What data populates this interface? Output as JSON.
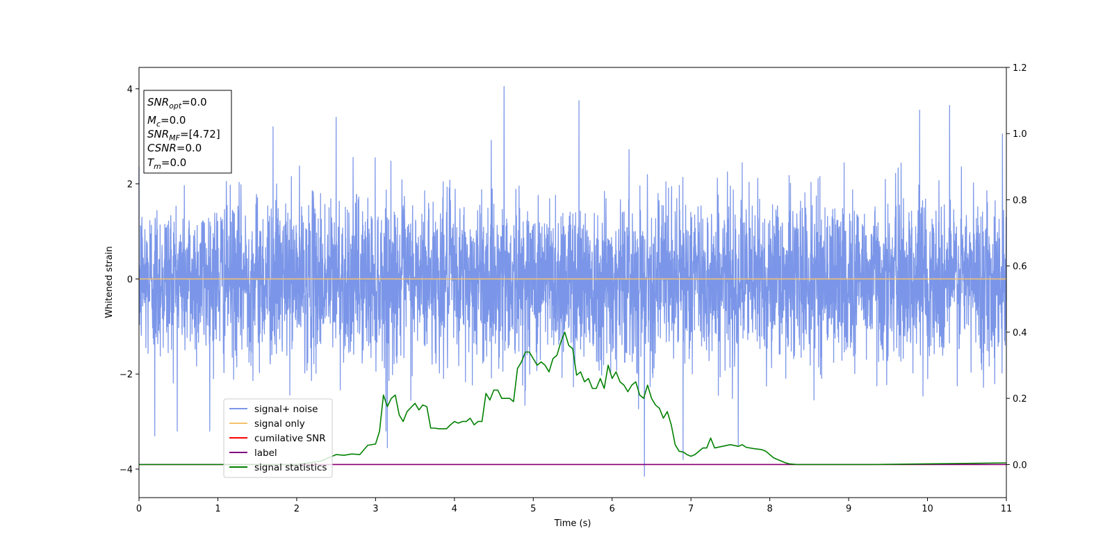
{
  "chart_data": {
    "type": "line",
    "xlabel": "Time (s)",
    "ylabel": "Whitened strain",
    "xlim": [
      0,
      11
    ],
    "ylim": [
      -4.6,
      4.45
    ],
    "ylim_right": [
      -0.1,
      1.2
    ],
    "x_ticks": [
      0,
      1,
      2,
      3,
      4,
      5,
      6,
      7,
      8,
      9,
      10,
      11
    ],
    "y_ticks": [
      -4,
      -2,
      0,
      2,
      4
    ],
    "y_ticks_right": [
      0.0,
      0.2,
      0.4,
      0.6,
      0.8,
      1.0,
      1.2
    ],
    "grid": false,
    "legend_position": "lower-left",
    "stats_box": [
      {
        "base": "SNR",
        "sub": "opt",
        "value": "=0.0"
      },
      {
        "base": "M",
        "sub": "c",
        "value": "=0.0"
      },
      {
        "base": "SNR",
        "sub": "MF",
        "value": "=[4.72]"
      },
      {
        "base": "CSNR",
        "sub": "",
        "value": "=0.0"
      },
      {
        "base": "T",
        "sub": "m",
        "value": "=0.0"
      }
    ],
    "series": [
      {
        "name": "signal+ noise",
        "color": "#7b96e8",
        "axis": "left",
        "kind": "noise",
        "std": 0.85,
        "spikes": [
          [
            4.63,
            4.05
          ],
          [
            5.58,
            3.75
          ],
          [
            6.41,
            -4.15
          ],
          [
            10.28,
            3.65
          ],
          [
            0.2,
            -3.3
          ],
          [
            6.9,
            -3.8
          ],
          [
            1.7,
            3.2
          ],
          [
            2.5,
            3.4
          ],
          [
            9.9,
            3.55
          ],
          [
            10.95,
            3.05
          ],
          [
            3.15,
            -3.55
          ],
          [
            7.6,
            -3.5
          ]
        ]
      },
      {
        "name": "signal only",
        "color": "#f5c26b",
        "axis": "left",
        "x": [
          0,
          11
        ],
        "y": [
          0,
          0
        ]
      },
      {
        "name": "cumilative SNR",
        "color": "#ff0000",
        "axis": "right",
        "x": [
          0,
          11
        ],
        "y": [
          0,
          0
        ]
      },
      {
        "name": "label",
        "color": "#800080",
        "axis": "right",
        "x": [
          0,
          11
        ],
        "y": [
          0,
          0
        ]
      },
      {
        "name": "signal statistics",
        "color": "#008000",
        "axis": "right",
        "x": [
          0,
          1,
          2,
          2.3,
          2.5,
          2.6,
          2.7,
          2.8,
          2.9,
          3.0,
          3.05,
          3.1,
          3.15,
          3.2,
          3.25,
          3.3,
          3.35,
          3.4,
          3.5,
          3.55,
          3.6,
          3.65,
          3.7,
          3.75,
          3.8,
          3.9,
          3.95,
          4.0,
          4.05,
          4.1,
          4.15,
          4.2,
          4.25,
          4.3,
          4.35,
          4.4,
          4.45,
          4.5,
          4.55,
          4.6,
          4.65,
          4.7,
          4.75,
          4.8,
          4.85,
          4.9,
          4.95,
          5.0,
          5.05,
          5.1,
          5.15,
          5.2,
          5.25,
          5.3,
          5.35,
          5.4,
          5.45,
          5.5,
          5.55,
          5.6,
          5.65,
          5.7,
          5.75,
          5.8,
          5.85,
          5.9,
          5.95,
          6.0,
          6.05,
          6.1,
          6.15,
          6.2,
          6.25,
          6.3,
          6.35,
          6.4,
          6.45,
          6.5,
          6.55,
          6.6,
          6.65,
          6.7,
          6.75,
          6.8,
          6.85,
          6.9,
          6.95,
          7.0,
          7.05,
          7.1,
          7.15,
          7.2,
          7.25,
          7.3,
          7.4,
          7.5,
          7.6,
          7.65,
          7.7,
          7.8,
          7.9,
          7.95,
          8.0,
          8.05,
          8.1,
          8.15,
          8.2,
          8.25,
          8.3,
          8.35,
          8.4,
          8.45,
          8.5,
          8.6,
          8.7,
          8.8,
          9.0,
          9.3,
          10.0,
          11.0
        ],
        "y": [
          0.0,
          0.0,
          0.0,
          0.01,
          0.03,
          0.028,
          0.032,
          0.03,
          0.058,
          0.062,
          0.1,
          0.21,
          0.175,
          0.2,
          0.21,
          0.15,
          0.13,
          0.16,
          0.185,
          0.165,
          0.18,
          0.175,
          0.11,
          0.11,
          0.108,
          0.108,
          0.12,
          0.13,
          0.125,
          0.13,
          0.13,
          0.14,
          0.12,
          0.13,
          0.13,
          0.215,
          0.195,
          0.225,
          0.225,
          0.2,
          0.2,
          0.2,
          0.19,
          0.29,
          0.31,
          0.34,
          0.34,
          0.32,
          0.3,
          0.31,
          0.3,
          0.28,
          0.32,
          0.33,
          0.37,
          0.4,
          0.36,
          0.35,
          0.27,
          0.28,
          0.25,
          0.26,
          0.23,
          0.23,
          0.26,
          0.23,
          0.3,
          0.26,
          0.28,
          0.25,
          0.24,
          0.22,
          0.24,
          0.25,
          0.21,
          0.2,
          0.24,
          0.2,
          0.18,
          0.17,
          0.14,
          0.16,
          0.12,
          0.06,
          0.04,
          0.038,
          0.03,
          0.025,
          0.03,
          0.04,
          0.05,
          0.05,
          0.08,
          0.05,
          0.055,
          0.06,
          0.055,
          0.06,
          0.052,
          0.048,
          0.045,
          0.04,
          0.03,
          0.02,
          0.015,
          0.01,
          0.005,
          0.002,
          0.001,
          0.0,
          0.0,
          0.0,
          0.0,
          0.0,
          0.0,
          0.0,
          0.0,
          0.0,
          0.002,
          0.005
        ]
      }
    ]
  }
}
